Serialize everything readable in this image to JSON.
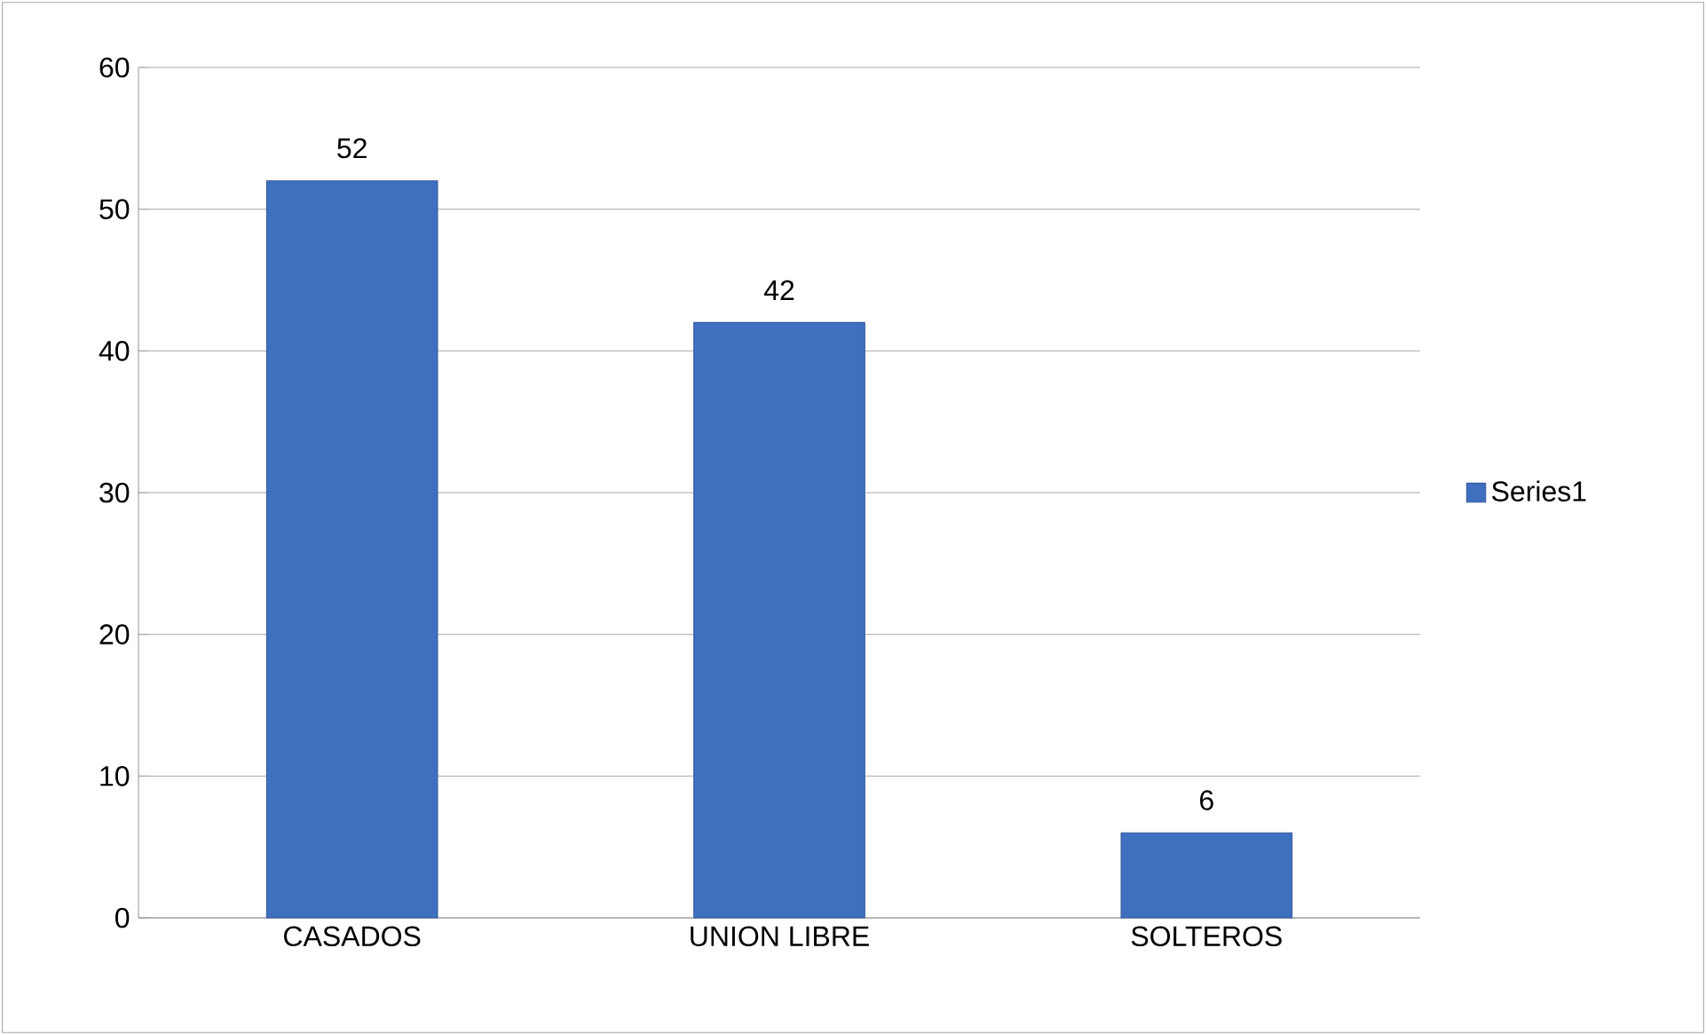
{
  "chart_data": {
    "type": "bar",
    "categories": [
      "CASADOS",
      "UNION LIBRE",
      "SOLTEROS"
    ],
    "series": [
      {
        "name": "Series1",
        "color": "#3f6fbf",
        "values": [
          52,
          42,
          6
        ]
      }
    ],
    "ylim": [
      0,
      60
    ],
    "yticks": [
      0,
      10,
      20,
      30,
      40,
      50,
      60
    ],
    "grid": "y",
    "legend": "right",
    "data_labels": true
  }
}
